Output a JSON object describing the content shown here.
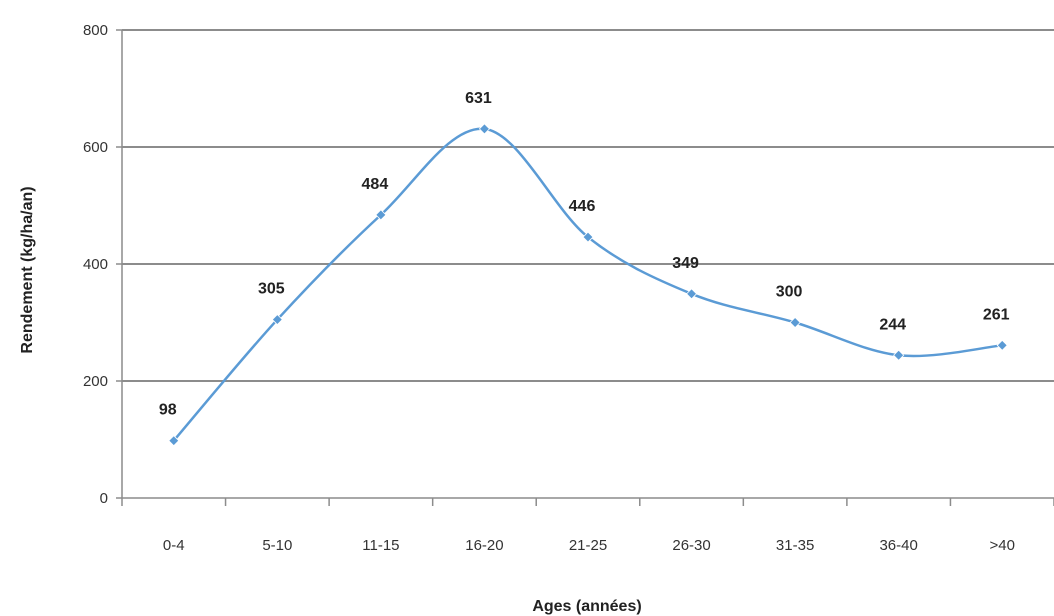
{
  "chart_data": {
    "type": "line",
    "smooth": true,
    "categories": [
      "0-4",
      "5-10",
      "11-15",
      "16-20",
      "21-25",
      "26-30",
      "31-35",
      "36-40",
      ">40"
    ],
    "series": [
      {
        "values": [
          98,
          305,
          484,
          631,
          446,
          349,
          300,
          244,
          261
        ],
        "color": "#5b9bd5"
      }
    ],
    "data_labels": [
      "98",
      "305",
      "484",
      "631",
      "446",
      "349",
      "300",
      "244",
      "261"
    ],
    "xlabel": "Ages (années)",
    "ylabel": "Rendement (kg/ha/an)",
    "ylim": [
      0,
      800
    ],
    "yticks": [
      0,
      200,
      400,
      600,
      800
    ],
    "grid": true,
    "legend": "none",
    "colors": {
      "line": "#5b9bd5",
      "grid": "#8c8c8c",
      "axis": "#8c8c8c"
    }
  }
}
